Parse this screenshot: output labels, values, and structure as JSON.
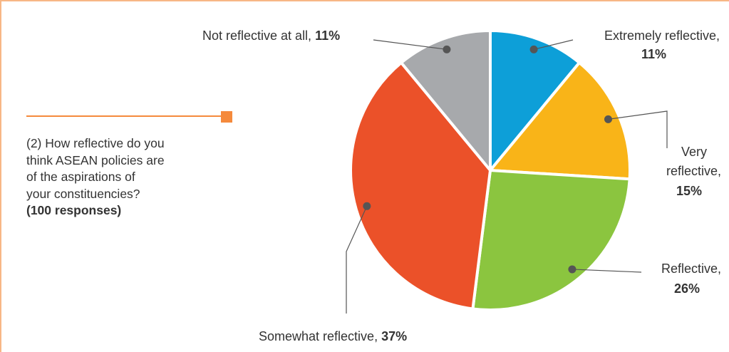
{
  "question": {
    "lines": [
      "(2) How reflective do you",
      "think ASEAN policies are",
      "of the aspirations of",
      "your constituencies?"
    ],
    "responses": "(100 responses)"
  },
  "colors": {
    "accent": "#f58a3c",
    "border": "#f7b786",
    "leader": "#555555"
  },
  "chart_data": {
    "type": "pie",
    "title": "",
    "slices": [
      {
        "name": "Extremely reflective",
        "label_lines": [
          "Extremely reflective,"
        ],
        "pct_text": "11%",
        "value": 11,
        "color": "#0d9fd8"
      },
      {
        "name": "Very reflective",
        "label_lines": [
          "Very",
          "reflective,"
        ],
        "pct_text": "15%",
        "value": 15,
        "color": "#f9b418"
      },
      {
        "name": "Reflective",
        "label_lines": [
          "Reflective,"
        ],
        "pct_text": "26%",
        "value": 26,
        "color": "#8bc53f"
      },
      {
        "name": "Somewhat reflective",
        "label_lines": [
          "Somewhat reflective, "
        ],
        "pct_text": "37%",
        "value": 37,
        "color": "#eb5129"
      },
      {
        "name": "Not reflective at all",
        "label_lines": [
          "Not reflective at all, "
        ],
        "pct_text": "11%",
        "value": 11,
        "color": "#a7a9ac"
      }
    ]
  }
}
